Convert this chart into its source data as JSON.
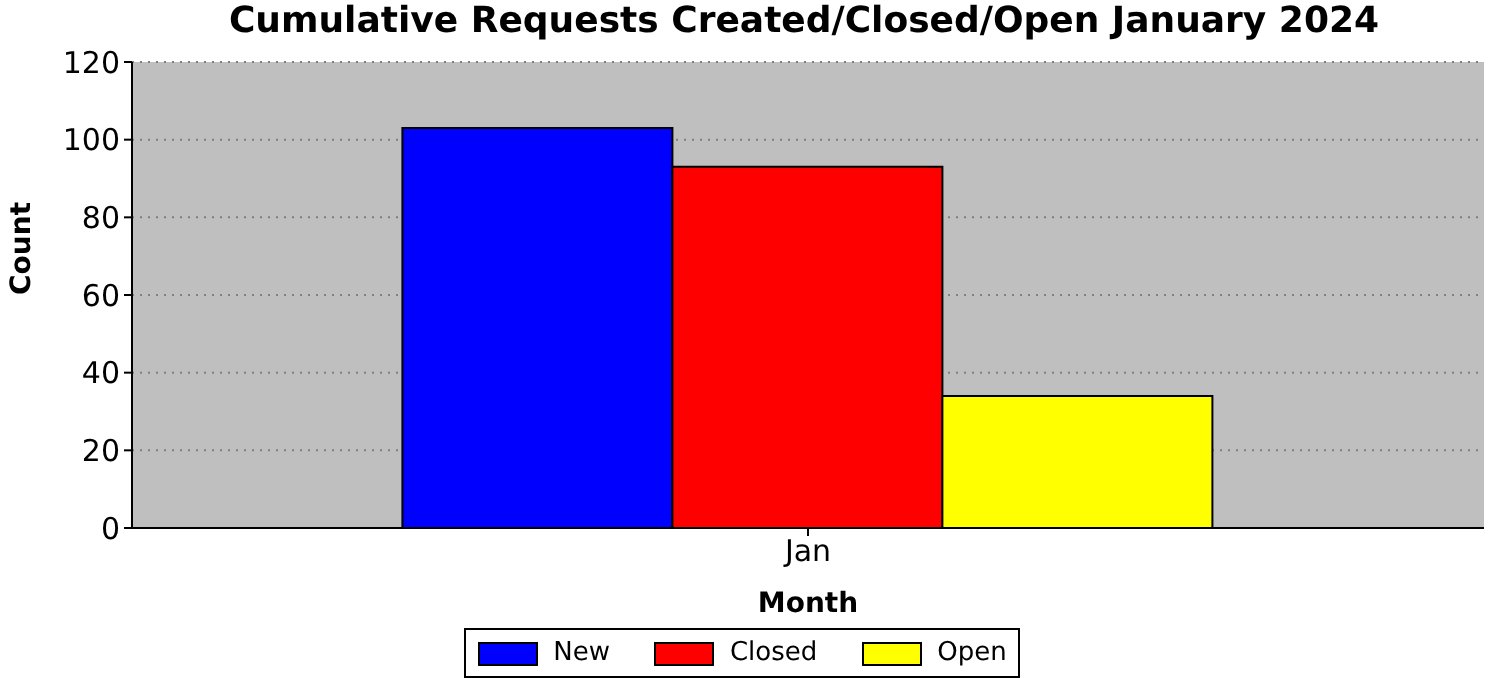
{
  "chart_data": {
    "type": "bar",
    "title": "Cumulative Requests Created/Closed/Open January 2024",
    "xlabel": "Month",
    "ylabel": "Count",
    "categories": [
      "Jan"
    ],
    "series": [
      {
        "name": "New",
        "color": "#0000ff",
        "values": [
          103
        ]
      },
      {
        "name": "Closed",
        "color": "#ff0000",
        "values": [
          93
        ]
      },
      {
        "name": "Open",
        "color": "#ffff00",
        "values": [
          34
        ]
      }
    ],
    "ylim": [
      0,
      120
    ],
    "yticks": [
      0,
      20,
      40,
      60,
      80,
      100,
      120
    ],
    "grid": "y",
    "legend": "bottom"
  }
}
